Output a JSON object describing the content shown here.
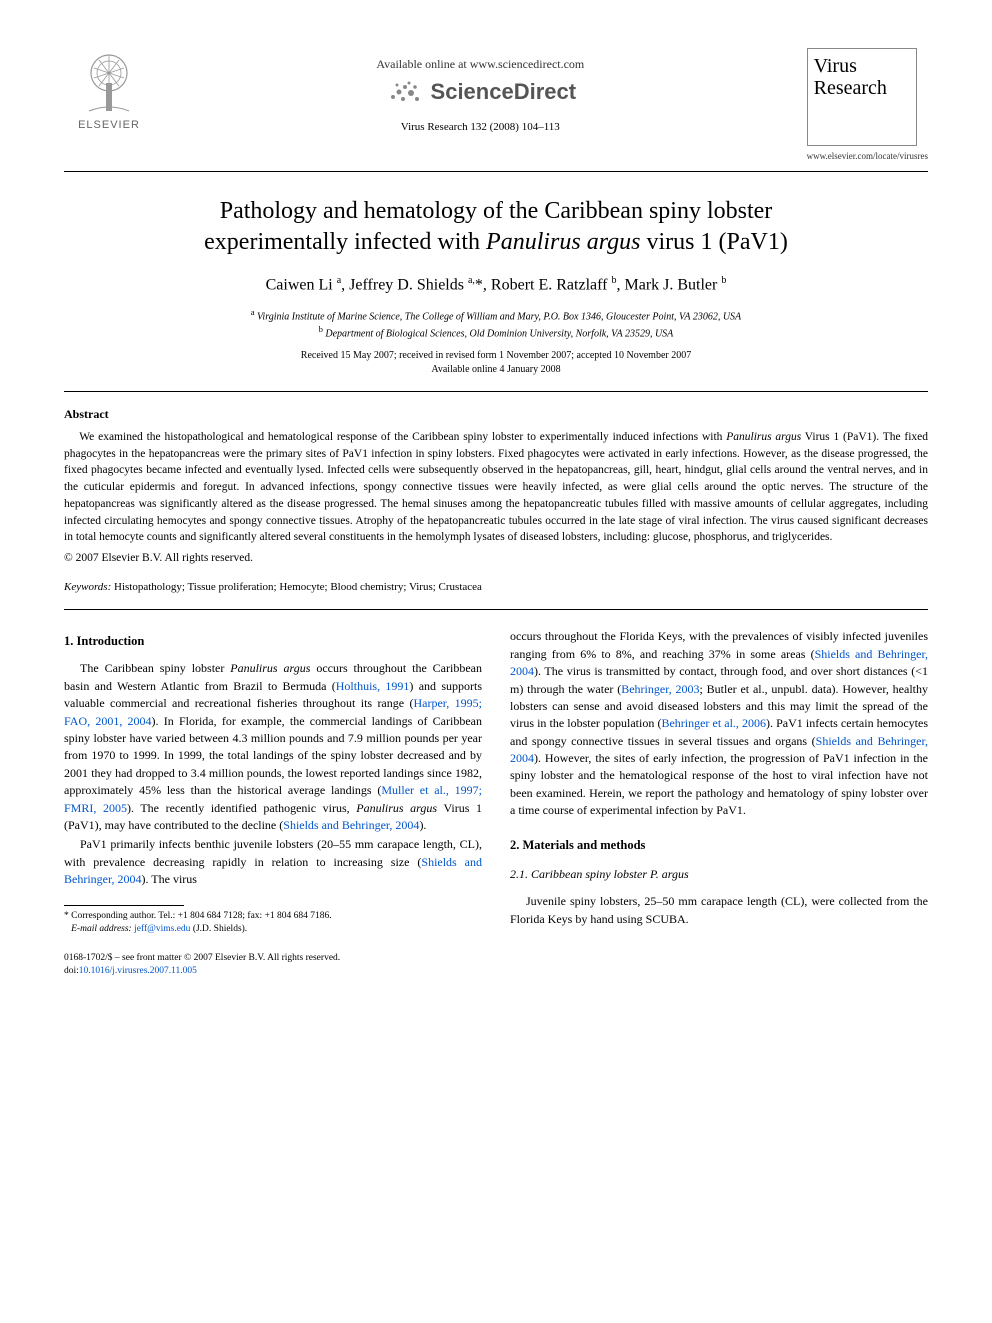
{
  "header": {
    "publisher_logo_label": "ELSEVIER",
    "available_online": "Available online at www.sciencedirect.com",
    "platform_name": "ScienceDirect",
    "journal_citation": "Virus Research 132 (2008) 104–113",
    "journal_cover_line1": "Virus",
    "journal_cover_line2": "Research",
    "journal_url": "www.elsevier.com/locate/virusres"
  },
  "article": {
    "title_line1": "Pathology and hematology of the Caribbean spiny lobster",
    "title_line2_pre": "experimentally infected with ",
    "title_line2_ital": "Panulirus argus",
    "title_line2_post": " virus 1 (PaV1)",
    "authors_html": "Caiwen Li <sup>a</sup>, Jeffrey D. Shields <sup>a,</sup>*, Robert E. Ratzlaff <sup>b</sup>, Mark J. Butler <sup>b</sup>",
    "affiliation_a": "Virginia Institute of Marine Science, The College of William and Mary, P.O. Box 1346, Gloucester Point, VA 23062, USA",
    "affiliation_b": "Department of Biological Sciences, Old Dominion University, Norfolk, VA 23529, USA",
    "dates_line1": "Received 15 May 2007; received in revised form 1 November 2007; accepted 10 November 2007",
    "dates_line2": "Available online 4 January 2008"
  },
  "abstract": {
    "heading": "Abstract",
    "text_pre": "We examined the histopathological and hematological response of the Caribbean spiny lobster to experimentally induced infections with ",
    "text_ital": "Panulirus argus",
    "text_post": " Virus 1 (PaV1). The fixed phagocytes in the hepatopancreas were the primary sites of PaV1 infection in spiny lobsters. Fixed phagocytes were activated in early infections. However, as the disease progressed, the fixed phagocytes became infected and eventually lysed. Infected cells were subsequently observed in the hepatopancreas, gill, heart, hindgut, glial cells around the ventral nerves, and in the cuticular epidermis and foregut. In advanced infections, spongy connective tissues were heavily infected, as were glial cells around the optic nerves. The structure of the hepatopancreas was significantly altered as the disease progressed. The hemal sinuses among the hepatopancreatic tubules filled with massive amounts of cellular aggregates, including infected circulating hemocytes and spongy connective tissues. Atrophy of the hepatopancreatic tubules occurred in the late stage of viral infection. The virus caused significant decreases in total hemocyte counts and significantly altered several constituents in the hemolymph lysates of diseased lobsters, including: glucose, phosphorus, and triglycerides.",
    "copyright": "© 2007 Elsevier B.V. All rights reserved."
  },
  "keywords": {
    "label": "Keywords:",
    "text": " Histopathology; Tissue proliferation; Hemocyte; Blood chemistry; Virus; Crustacea"
  },
  "body": {
    "section1_heading": "1. Introduction",
    "p1_pre": "The Caribbean spiny lobster ",
    "p1_ital": "Panulirus argus",
    "p1_mid": " occurs throughout the Caribbean basin and Western Atlantic from Brazil to Bermuda (",
    "p1_link1": "Holthuis, 1991",
    "p1_mid2": ") and supports valuable commercial and recreational fisheries throughout its range (",
    "p1_link2": "Harper, 1995; FAO, 2001, 2004",
    "p1_mid3": "). In Florida, for example, the commercial landings of Caribbean spiny lobster have varied between 4.3 million pounds and 7.9 million pounds per year from 1970 to 1999. In 1999, the total landings of the spiny lobster decreased and by 2001 they had dropped to 3.4 million pounds, the lowest reported landings since 1982, approximately 45% less than the historical average landings (",
    "p1_link3": "Muller et al., 1997; FMRI, 2005",
    "p1_mid4": "). The recently identified pathogenic virus, ",
    "p1_ital2": "Panulirus argus",
    "p1_mid5": " Virus 1 (PaV1), may have contributed to the decline (",
    "p1_link4": "Shields and Behringer, 2004",
    "p1_end": ").",
    "p2_pre": "PaV1 primarily infects benthic juvenile lobsters (20–55 mm carapace length, CL), with prevalence decreasing rapidly in relation to increasing size (",
    "p2_link1": "Shields and Behringer, 2004",
    "p2_end": "). The virus",
    "p3_pre": "occurs throughout the Florida Keys, with the prevalences of visibly infected juveniles ranging from 6% to 8%, and reaching 37% in some areas (",
    "p3_link1": "Shields and Behringer, 2004",
    "p3_mid1": "). The virus is transmitted by contact, through food, and over short distances (<1 m) through the water (",
    "p3_link2": "Behringer, 2003",
    "p3_mid2": "; Butler et al., unpubl. data). However, healthy lobsters can sense and avoid diseased lobsters and this may limit the spread of the virus in the lobster population (",
    "p3_link3": "Behringer et al., 2006",
    "p3_mid3": "). PaV1 infects certain hemocytes and spongy connective tissues in several tissues and organs (",
    "p3_link4": "Shields and Behringer, 2004",
    "p3_end": "). However, the sites of early infection, the progression of PaV1 infection in the spiny lobster and the hematological response of the host to viral infection have not been examined. Herein, we report the pathology and hematology of spiny lobster over a time course of experimental infection by PaV1.",
    "section2_heading": "2. Materials and methods",
    "section21_pre": "2.1. Caribbean spiny lobster ",
    "section21_ital": "P. argus",
    "p4": "Juvenile spiny lobsters, 25–50 mm carapace length (CL), were collected from the Florida Keys by hand using SCUBA."
  },
  "footnote": {
    "corr_author": "* Corresponding author. Tel.: +1 804 684 7128; fax: +1 804 684 7186.",
    "email_label": "E-mail address:",
    "email_value": "jeff@vims.edu",
    "email_name": " (J.D. Shields)."
  },
  "footer": {
    "line1": "0168-1702/$ – see front matter © 2007 Elsevier B.V. All rights reserved.",
    "doi_label": "doi:",
    "doi_value": "10.1016/j.virusres.2007.11.005"
  },
  "colors": {
    "link": "#0055cc",
    "text": "#000000",
    "rule": "#000000"
  }
}
